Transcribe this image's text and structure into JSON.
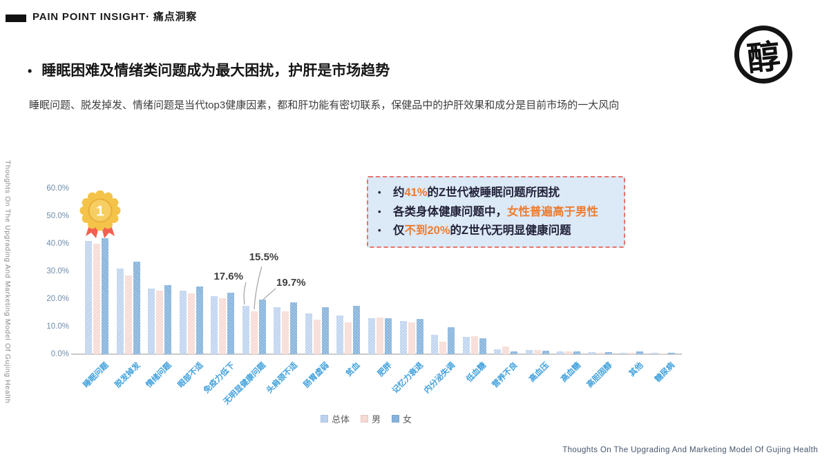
{
  "header": {
    "kicker": "PAIN POINT INSIGHT· 痛点洞察"
  },
  "title": {
    "bullet": "•",
    "text": "睡眠困难及情绪类问题成为最大困扰，护肝是市场趋势"
  },
  "subtitle": "睡眠问题、脱发掉发、情绪问题是当代top3健康因素，都和肝功能有密切联系，保健品中的护肝效果和成分是目前市场的一大风向",
  "logo": {
    "character": "醇"
  },
  "medal": {
    "rank": "1"
  },
  "side_text": "Thoughts On The Upgrading And Marketing Model Of Gujing Health",
  "footer_text": "Thoughts On The Upgrading And Marketing Model Of Gujing Health",
  "callout": {
    "bg_color": "#DCE9F7",
    "border_color": "#E8746A",
    "highlight_color": "#ED7D31",
    "bullets": [
      [
        {
          "t": "约"
        },
        {
          "t": "41%",
          "hl": true
        },
        {
          "t": "的Z世代被睡眠问题所困扰"
        }
      ],
      [
        {
          "t": "各类身体健康问题中，"
        },
        {
          "t": "女性普遍高于男性",
          "hl": true
        }
      ],
      [
        {
          "t": "仅"
        },
        {
          "t": "不到20%",
          "hl": true
        },
        {
          "t": "的Z世代无明显健康问题"
        }
      ]
    ]
  },
  "chart_data": {
    "type": "bar",
    "title": "",
    "xlabel": "",
    "ylabel": "",
    "ylim": [
      0,
      60
    ],
    "ytick_step": 10,
    "ytick_labels": [
      "0.0%",
      "10.0%",
      "20.0%",
      "30.0%",
      "40.0%",
      "50.0%",
      "60.0%"
    ],
    "grid": false,
    "legend_position": "bottom",
    "categories": [
      "睡眠问题",
      "脱发掉发",
      "情绪问题",
      "眼部不适",
      "免疫力低下",
      "无明显健康问题",
      "头肩颈不适",
      "肠胃虚弱",
      "贫血",
      "肥胖",
      "记忆力衰退",
      "内分泌失调",
      "低血糖",
      "营养不良",
      "高血压",
      "高血糖",
      "高胆固醇",
      "其他",
      "糖尿病"
    ],
    "series": [
      {
        "name": "总体",
        "color": "#BCD2EE",
        "values": [
          41.0,
          31.0,
          23.7,
          23.0,
          21.0,
          17.6,
          17.0,
          14.7,
          14.0,
          13.0,
          12.1,
          7.0,
          6.2,
          1.8,
          1.4,
          0.9,
          0.7,
          0.6,
          0.4
        ]
      },
      {
        "name": "男",
        "color": "#F6D9D3",
        "values": [
          40.0,
          28.5,
          23.0,
          22.0,
          20.3,
          15.5,
          15.5,
          12.5,
          11.5,
          13.2,
          11.5,
          4.5,
          6.6,
          2.8,
          1.4,
          0.9,
          0.6,
          0.5,
          0.3
        ]
      },
      {
        "name": "女",
        "color": "#86B3DC",
        "values": [
          42.0,
          33.5,
          25.0,
          24.5,
          22.3,
          19.7,
          18.7,
          17.0,
          17.5,
          13.0,
          12.8,
          9.7,
          5.8,
          1.0,
          1.3,
          0.9,
          0.7,
          1.0,
          0.4
        ]
      }
    ],
    "annotations": [
      {
        "text": "17.6%",
        "series": "总体",
        "category": "无明显健康问题"
      },
      {
        "text": "15.5%",
        "series": "男",
        "category": "无明显健康问题"
      },
      {
        "text": "19.7%",
        "series": "女",
        "category": "无明显健康问题"
      }
    ]
  }
}
